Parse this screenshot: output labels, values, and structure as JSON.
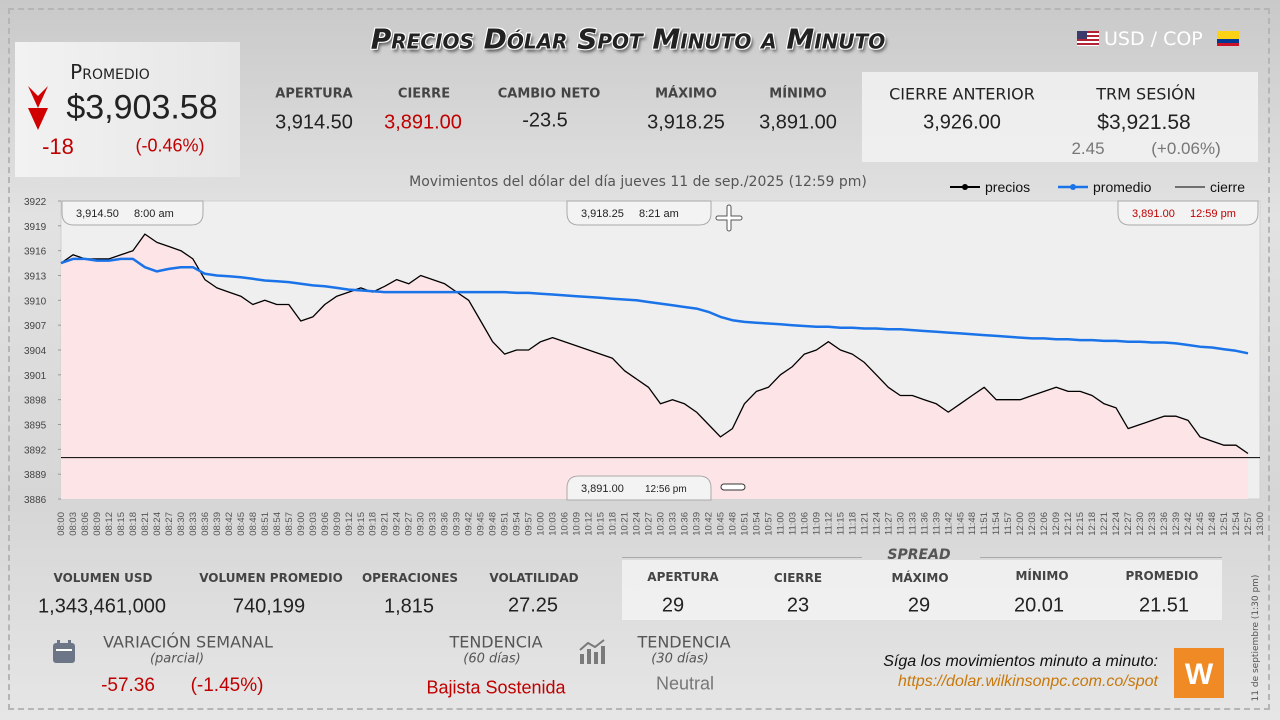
{
  "header": {
    "title": "Precios Dólar Spot Minuto a Minuto",
    "pair": "USD / COP"
  },
  "average": {
    "label": "Promedio",
    "value": "$3,903.58",
    "change": "-18",
    "change_pct": "(-0.46%)"
  },
  "session": [
    {
      "label": "APERTURA",
      "value": "3,914.50"
    },
    {
      "label": "CIERRE",
      "value": "3,891.00"
    },
    {
      "label": "CAMBIO NETO",
      "value": "-23.5"
    },
    {
      "label": "MÁXIMO",
      "value": "3,918.25"
    },
    {
      "label": "MÍNIMO",
      "value": "3,891.00"
    }
  ],
  "previous_close": {
    "label": "CIERRE ANTERIOR",
    "value": "3,926.00"
  },
  "trm": {
    "label": "TRM SESIÓN",
    "value": "$3,921.58",
    "change": "2.45",
    "change_pct": "(+0.06%)"
  },
  "volume": [
    {
      "label": "VOLUMEN USD",
      "value": "1,343,461,000"
    },
    {
      "label": "VOLUMEN PROMEDIO",
      "value": "740,199"
    },
    {
      "label": "OPERACIONES",
      "value": "1,815"
    },
    {
      "label": "VOLATILIDAD",
      "value": "27.25"
    }
  ],
  "spread": {
    "title": "SPREAD",
    "items": [
      {
        "label": "APERTURA",
        "value": "29"
      },
      {
        "label": "CIERRE",
        "value": "23"
      },
      {
        "label": "MÁXIMO",
        "value": "29"
      },
      {
        "label": "MÍNIMO",
        "value": "20.01"
      },
      {
        "label": "PROMEDIO",
        "value": "21.51"
      }
    ]
  },
  "weekly": {
    "label": "VARIACIÓN SEMANAL",
    "note": "(parcial)",
    "change": "-57.36",
    "change_pct": "(-1.45%)"
  },
  "trend60": {
    "label": "TENDENCIA",
    "note": "(60 días)",
    "value": "Bajista Sostenida"
  },
  "trend30": {
    "label": "TENDENCIA",
    "note": "(30 días)",
    "value": "Neutral"
  },
  "footer": {
    "cta": "Síga los movimientos minuto a minuto:",
    "url": "https://dolar.wilkinsonpc.com.co/spot",
    "stamp": "11 de septiembre (1:30 pm)"
  },
  "chart_data": {
    "type": "line",
    "title": "Movimientos del dólar del día jueves 11 de sep./2025 (12:59 pm)",
    "categories": [
      "08:00",
      "08:03",
      "08:06",
      "08:09",
      "08:12",
      "08:15",
      "08:18",
      "08:21",
      "08:24",
      "08:27",
      "08:30",
      "08:33",
      "08:36",
      "08:39",
      "08:42",
      "08:45",
      "08:48",
      "08:51",
      "08:54",
      "08:57",
      "09:00",
      "09:03",
      "09:06",
      "09:09",
      "09:12",
      "09:15",
      "09:18",
      "09:21",
      "09:24",
      "09:27",
      "09:30",
      "09:33",
      "09:36",
      "09:39",
      "09:42",
      "09:45",
      "09:48",
      "09:51",
      "09:54",
      "09:57",
      "10:00",
      "10:03",
      "10:06",
      "10:09",
      "10:12",
      "10:15",
      "10:18",
      "10:21",
      "10:24",
      "10:27",
      "10:30",
      "10:33",
      "10:36",
      "10:39",
      "10:42",
      "10:45",
      "10:48",
      "10:51",
      "10:54",
      "10:57",
      "11:00",
      "11:03",
      "11:06",
      "11:09",
      "11:12",
      "11:15",
      "11:18",
      "11:21",
      "11:24",
      "11:27",
      "11:30",
      "11:33",
      "11:36",
      "11:39",
      "11:42",
      "11:45",
      "11:48",
      "11:51",
      "11:54",
      "11:57",
      "12:00",
      "12:03",
      "12:06",
      "12:09",
      "12:12",
      "12:15",
      "12:18",
      "12:21",
      "12:24",
      "12:27",
      "12:30",
      "12:33",
      "12:36",
      "12:39",
      "12:42",
      "12:45",
      "12:48",
      "12:51",
      "12:54",
      "12:57",
      "13:00"
    ],
    "series": [
      {
        "name": "precios",
        "color": "#000000",
        "fill": "#fde4e7",
        "values": [
          3914.5,
          3915.5,
          3915,
          3915,
          3915,
          3915.5,
          3916,
          3918,
          3917,
          3916.5,
          3916,
          3915,
          3912.5,
          3911.5,
          3911,
          3910.5,
          3909.5,
          3910,
          3909.5,
          3909.5,
          3907.5,
          3908,
          3909.5,
          3910.5,
          3911,
          3911.5,
          3911,
          3911.7,
          3912.5,
          3912,
          3913,
          3912.5,
          3912,
          3911,
          3910,
          3907.5,
          3905,
          3903.5,
          3904,
          3904,
          3905,
          3905.5,
          3905,
          3904.5,
          3904,
          3903.5,
          3903,
          3901.5,
          3900.5,
          3899.5,
          3897.5,
          3898,
          3897.5,
          3896.5,
          3895,
          3893.5,
          3894.5,
          3897.5,
          3899,
          3899.5,
          3901,
          3902,
          3903.5,
          3904,
          3905,
          3904,
          3903.5,
          3902.5,
          3901,
          3899.5,
          3898.5,
          3898.5,
          3898,
          3897.5,
          3896.5,
          3897.5,
          3898.5,
          3899.5,
          3898,
          3898,
          3898,
          3898.5,
          3899,
          3899.5,
          3899,
          3899,
          3898.5,
          3897.5,
          3897,
          3894.5,
          3895,
          3895.5,
          3896,
          3896,
          3895.5,
          3893.5,
          3893,
          3892.5,
          3892.5,
          3891.5,
          null
        ]
      },
      {
        "name": "promedio",
        "color": "#1a73e8",
        "values": [
          3914.5,
          3915,
          3915,
          3914.8,
          3914.8,
          3915,
          3915,
          3914,
          3913.5,
          3913.8,
          3914,
          3914,
          3913.2,
          3913,
          3912.9,
          3912.8,
          3912.6,
          3912.4,
          3912.3,
          3912.2,
          3912,
          3911.8,
          3911.7,
          3911.5,
          3911.3,
          3911.2,
          3911.1,
          3911,
          3911,
          3911,
          3911,
          3911,
          3911,
          3911,
          3911,
          3911,
          3911,
          3911,
          3910.9,
          3910.9,
          3910.8,
          3910.7,
          3910.6,
          3910.5,
          3910.4,
          3910.3,
          3910.2,
          3910.1,
          3910,
          3909.8,
          3909.6,
          3909.4,
          3909.2,
          3909,
          3908.6,
          3908,
          3907.6,
          3907.4,
          3907.3,
          3907.2,
          3907.1,
          3907,
          3906.9,
          3906.8,
          3906.8,
          3906.7,
          3906.7,
          3906.6,
          3906.6,
          3906.5,
          3906.5,
          3906.4,
          3906.3,
          3906.2,
          3906.1,
          3906,
          3905.9,
          3905.8,
          3905.7,
          3905.6,
          3905.5,
          3905.4,
          3905.4,
          3905.3,
          3905.3,
          3905.2,
          3905.2,
          3905.1,
          3905.1,
          3905,
          3905,
          3904.9,
          3904.9,
          3904.8,
          3904.6,
          3904.4,
          3904.3,
          3904.1,
          3903.9,
          3903.6,
          null
        ]
      }
    ],
    "hlines": [
      {
        "name": "cierre",
        "value": 3891,
        "color": "#000000"
      }
    ],
    "annotations": [
      {
        "price": "3,914.50",
        "time": "8:00 am"
      },
      {
        "price": "3,918.25",
        "time": "8:21 am"
      },
      {
        "price": "3,891.00",
        "time": "12:59 pm"
      },
      {
        "price": "3,891.00",
        "time": "12:56 pm"
      }
    ],
    "ylim": [
      3886,
      3922
    ],
    "yticks": [
      3886,
      3889,
      3892,
      3895,
      3898,
      3901,
      3904,
      3907,
      3910,
      3913,
      3916,
      3919,
      3922
    ],
    "grid": false,
    "legend": "top-right"
  }
}
